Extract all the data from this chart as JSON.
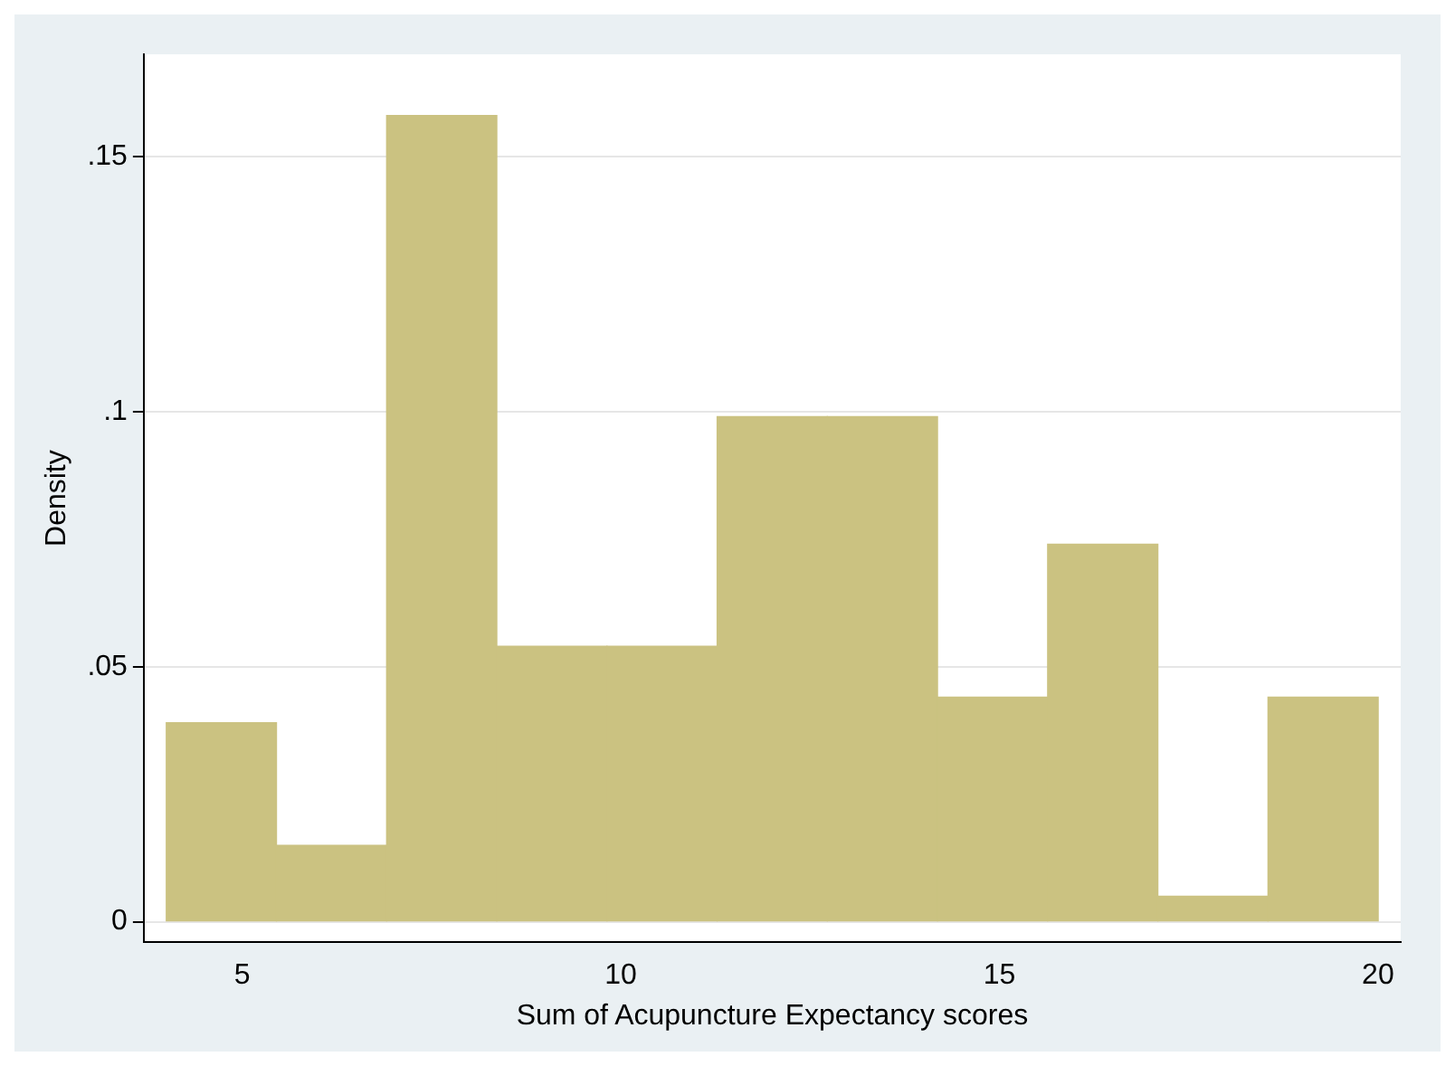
{
  "chart_data": {
    "type": "histogram",
    "xlabel": "Sum of Acupuncture Expectancy scores",
    "ylabel": "Density",
    "bins": [
      4,
      5.45,
      6.91,
      8.36,
      9.82,
      11.27,
      12.73,
      14.18,
      15.64,
      17.09,
      18.55,
      20
    ],
    "values": [
      0.039,
      0.015,
      0.158,
      0.054,
      0.054,
      0.099,
      0.099,
      0.044,
      0.074,
      0.005,
      0.044
    ],
    "color": "#cbc281",
    "xlim": [
      3.7,
      20.3
    ],
    "xticks": [
      5,
      10,
      15,
      20
    ],
    "ylim": [
      -0.004,
      0.17
    ],
    "yticks": [
      {
        "value": 0,
        "label": "0"
      },
      {
        "value": 0.05,
        "label": ".05"
      },
      {
        "value": 0.1,
        "label": ".1"
      },
      {
        "value": 0.15,
        "label": ".15"
      }
    ],
    "grid": "y"
  }
}
